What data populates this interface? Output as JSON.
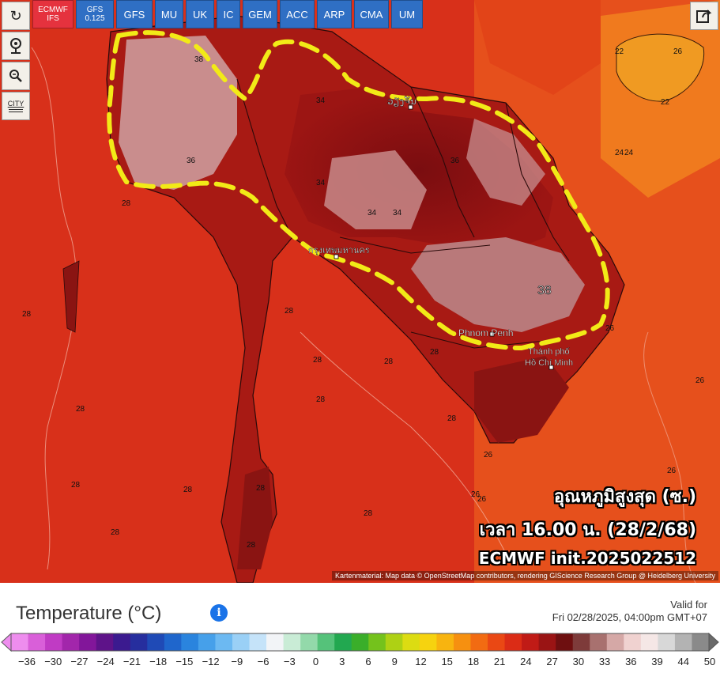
{
  "model_buttons": [
    {
      "label": "ECMWF IFS",
      "line1": "ECMWF",
      "line2": "IFS",
      "active": true
    },
    {
      "label": "GFS 0.125",
      "line1": "GFS",
      "line2": "0.125",
      "active": false
    },
    {
      "label": "GFS",
      "line1": "GFS",
      "line2": "",
      "active": false
    },
    {
      "label": "MU",
      "line1": "MU",
      "line2": "",
      "active": false
    },
    {
      "label": "UK",
      "line1": "UK",
      "line2": "",
      "active": false
    },
    {
      "label": "IC",
      "line1": "IC",
      "line2": "",
      "active": false
    },
    {
      "label": "GEM",
      "line1": "GEM",
      "line2": "",
      "active": false
    },
    {
      "label": "ACC",
      "line1": "ACC",
      "line2": "",
      "active": false
    },
    {
      "label": "ARP",
      "line1": "ARP",
      "line2": "",
      "active": false
    },
    {
      "label": "CMA",
      "line1": "CMA",
      "line2": "",
      "active": false
    },
    {
      "label": "UM",
      "line1": "UM",
      "line2": "",
      "active": false
    }
  ],
  "tools": {
    "city_label": "CITY",
    "icons": [
      "refresh-icon",
      "location-pin-icon",
      "zoom-icon",
      "city-toggle-icon",
      "share-icon"
    ]
  },
  "map": {
    "cities": {
      "bangkok": "กรุงเทพมหานคร",
      "vientiane": "ວຽງຈັນ",
      "phnom_penh": "Phnom Penh",
      "hcmc_line1": "Thành phố",
      "hcmc_line2": "Hồ Chí Minh"
    },
    "contour_labels": [
      "22",
      "26",
      "22",
      "24",
      "38",
      "36",
      "34",
      "36",
      "34",
      "34",
      "34",
      "38",
      "28",
      "28",
      "28",
      "28",
      "28",
      "26",
      "26",
      "26",
      "28",
      "28",
      "28",
      "28",
      "28",
      "28",
      "28",
      "28",
      "28",
      "28",
      "26",
      "26",
      "26",
      "24"
    ],
    "credit": "Kartenmaterial: Map data © OpenStreetMap contributors, rendering GIScience Research Group @ Heidelberg University",
    "overlay": {
      "line1": "อุณหภูมิสูงสุด (ซ.)",
      "line2": "เวลา 16.00 น. (28/2/68)",
      "line3": "ECMWF init.2025022512"
    },
    "highlight_color": "#f2ea17"
  },
  "legend": {
    "title": "Temperature (°C)",
    "valid_line1": "Valid for",
    "valid_line2": "Fri 02/28/2025, 04:00pm GMT+07",
    "ticks": [
      "-36",
      "-30",
      "-27",
      "-24",
      "-21",
      "-18",
      "-15",
      "-12",
      "-9",
      "-6",
      "-3",
      "0",
      "3",
      "6",
      "9",
      "12",
      "15",
      "18",
      "21",
      "24",
      "27",
      "30",
      "33",
      "36",
      "39",
      "44",
      "50"
    ],
    "colors": [
      "#ee8dee",
      "#d95fd9",
      "#c03bc4",
      "#a226ab",
      "#82169a",
      "#5e1389",
      "#3b1a8f",
      "#262e9e",
      "#1f4ab6",
      "#1f66cc",
      "#2a84de",
      "#46a0ea",
      "#6cb9f2",
      "#9ad0f6",
      "#c5e3f9",
      "#f2f4f7",
      "#c9ecd6",
      "#93d9aa",
      "#55c27a",
      "#22a850",
      "#3aae2a",
      "#74c21c",
      "#aed114",
      "#dcdc12",
      "#f6d30f",
      "#f8b40f",
      "#f69010",
      "#f26b12",
      "#ea4814",
      "#db2c16",
      "#c01b16",
      "#9a1414",
      "#6e0f10",
      "#7e3b3a",
      "#a8716f",
      "#d5a8a6",
      "#f0d2d0",
      "#f5e7e6",
      "#d8d8d8",
      "#b3b3b3",
      "#8a8a8a"
    ]
  }
}
